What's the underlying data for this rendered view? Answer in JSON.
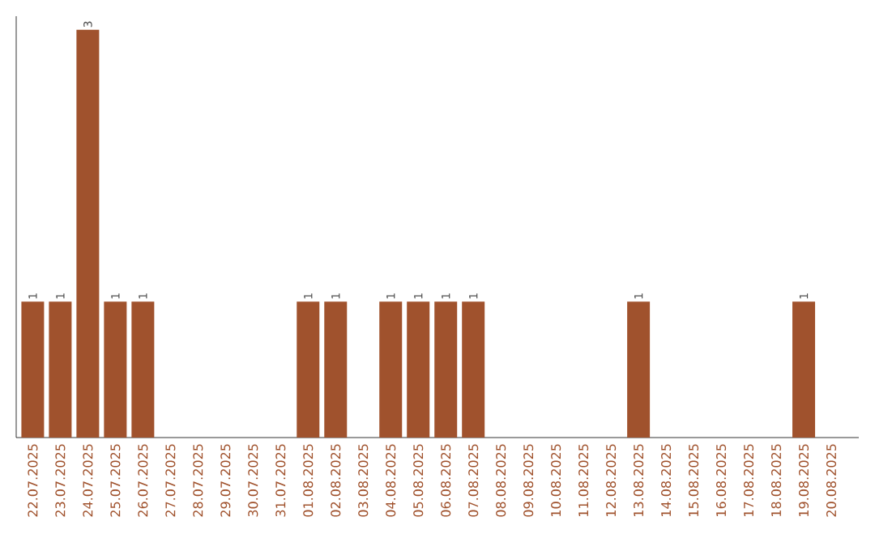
{
  "chart_data": {
    "type": "bar",
    "categories": [
      "22.07.2025",
      "23.07.2025",
      "24.07.2025",
      "25.07.2025",
      "26.07.2025",
      "27.07.2025",
      "28.07.2025",
      "29.07.2025",
      "30.07.2025",
      "31.07.2025",
      "01.08.2025",
      "02.08.2025",
      "03.08.2025",
      "04.08.2025",
      "05.08.2025",
      "06.08.2025",
      "07.08.2025",
      "08.08.2025",
      "09.08.2025",
      "10.08.2025",
      "11.08.2025",
      "12.08.2025",
      "13.08.2025",
      "14.08.2025",
      "15.08.2025",
      "16.08.2025",
      "17.08.2025",
      "18.08.2025",
      "19.08.2025",
      "20.08.2025"
    ],
    "values": [
      1,
      1,
      3,
      1,
      1,
      0,
      0,
      0,
      0,
      0,
      1,
      1,
      0,
      1,
      1,
      1,
      1,
      0,
      0,
      0,
      0,
      0,
      1,
      0,
      0,
      0,
      0,
      0,
      1,
      0
    ],
    "value_labels": [
      "1",
      "1",
      "3",
      "1",
      "1",
      null,
      null,
      null,
      null,
      null,
      "1",
      "1",
      null,
      "1",
      "1",
      "1",
      "1",
      null,
      null,
      null,
      null,
      null,
      "1",
      null,
      null,
      null,
      null,
      null,
      "1",
      null
    ],
    "color": "#a0522d",
    "ylim": [
      0,
      3.1
    ],
    "tick_labels": "x"
  }
}
